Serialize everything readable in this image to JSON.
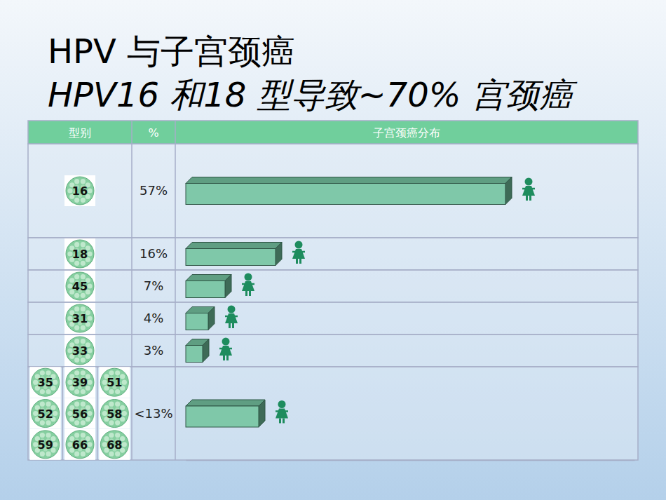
{
  "chart_data": {
    "type": "bar",
    "orientation": "horizontal",
    "title": "HPV 与子宫颈癌",
    "subtitle": "HPV16 和18 型导致~70% 宫颈癌",
    "column_headers": [
      "型别",
      "%",
      "子宫颈癌分布"
    ],
    "categories": [
      "16",
      "18",
      "45",
      "31",
      "33",
      [
        "35",
        "39",
        "51",
        "52",
        "56",
        "58",
        "59",
        "66",
        "68"
      ]
    ],
    "values": [
      57,
      16,
      7,
      4,
      3,
      13
    ],
    "value_labels": [
      "57%",
      "16%",
      "7%",
      "4%",
      "3%",
      "<13%"
    ],
    "data_labels": true,
    "color": "#7fc8a9",
    "xlim": [
      0,
      80
    ],
    "tick_labels": false
  }
}
